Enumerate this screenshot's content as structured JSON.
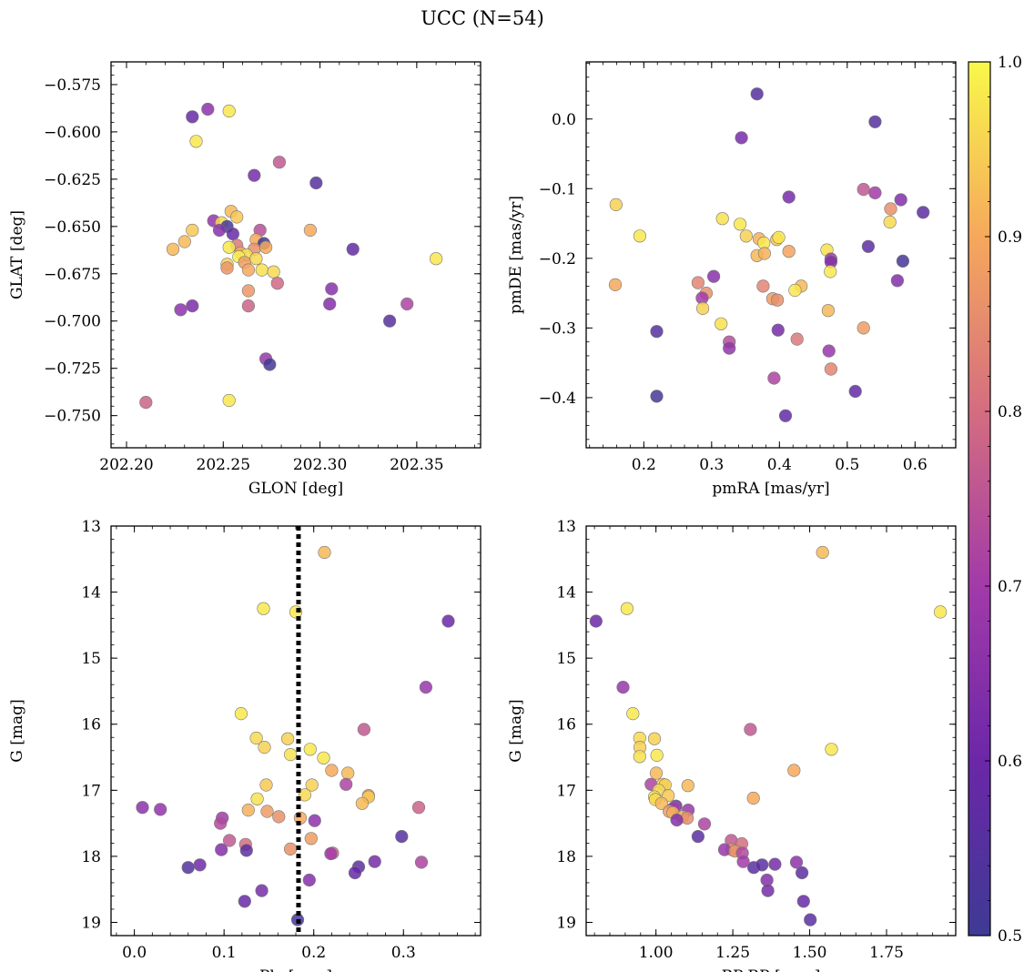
{
  "figure": {
    "title": "UCC (N=54)",
    "colorbar": {
      "min": 0.5,
      "max": 1.0,
      "ticks": [
        "0.5",
        "0.6",
        "0.7",
        "0.8",
        "0.9",
        "1.0"
      ],
      "colormap": "plasma"
    }
  },
  "chart_data": [
    {
      "type": "scatter",
      "title": "",
      "xlabel": "GLON [deg]",
      "ylabel": "GLAT [deg]",
      "xlim": [
        202.192,
        202.383
      ],
      "ylim": [
        -0.767,
        -0.563
      ],
      "yinvert": false,
      "xticks": [
        202.2,
        202.25,
        202.3,
        202.35
      ],
      "xticklabels": [
        "202.20",
        "202.25",
        "202.30",
        "202.35"
      ],
      "yticks": [
        -0.575,
        -0.6,
        -0.625,
        -0.65,
        -0.675,
        -0.7,
        -0.725,
        -0.75
      ],
      "yticklabels": [
        "−0.575",
        "−0.600",
        "−0.625",
        "−0.650",
        "−0.675",
        "−0.700",
        "−0.725",
        "−0.750"
      ],
      "points": [
        [
          202.242,
          -0.588,
          0.66
        ],
        [
          202.253,
          -0.589,
          0.98
        ],
        [
          202.234,
          -0.592,
          0.59
        ],
        [
          202.236,
          -0.605,
          0.98
        ],
        [
          202.279,
          -0.616,
          0.76
        ],
        [
          202.266,
          -0.623,
          0.62
        ],
        [
          202.298,
          -0.627,
          0.55
        ],
        [
          202.254,
          -0.642,
          0.92
        ],
        [
          202.257,
          -0.645,
          0.94
        ],
        [
          202.245,
          -0.647,
          0.67
        ],
        [
          202.249,
          -0.648,
          0.96
        ],
        [
          202.252,
          -0.65,
          0.51
        ],
        [
          202.248,
          -0.652,
          0.65
        ],
        [
          202.234,
          -0.652,
          0.94
        ],
        [
          202.269,
          -0.652,
          0.74
        ],
        [
          202.295,
          -0.652,
          0.9
        ],
        [
          202.255,
          -0.654,
          0.59
        ],
        [
          202.267,
          -0.657,
          0.9
        ],
        [
          202.23,
          -0.658,
          0.92
        ],
        [
          202.271,
          -0.659,
          0.5
        ],
        [
          202.257,
          -0.66,
          0.82
        ],
        [
          202.253,
          -0.661,
          0.98
        ],
        [
          202.224,
          -0.662,
          0.92
        ],
        [
          202.266,
          -0.662,
          0.86
        ],
        [
          202.272,
          -0.661,
          0.9
        ],
        [
          202.317,
          -0.662,
          0.58
        ],
        [
          202.259,
          -0.664,
          0.9
        ],
        [
          202.262,
          -0.665,
          0.97
        ],
        [
          202.258,
          -0.666,
          0.99
        ],
        [
          202.36,
          -0.667,
          0.98
        ],
        [
          202.261,
          -0.669,
          0.88
        ],
        [
          202.267,
          -0.667,
          0.96
        ],
        [
          202.252,
          -0.67,
          0.95
        ],
        [
          202.252,
          -0.672,
          0.87
        ],
        [
          202.263,
          -0.673,
          0.9
        ],
        [
          202.27,
          -0.673,
          0.97
        ],
        [
          202.276,
          -0.674,
          0.96
        ],
        [
          202.278,
          -0.68,
          0.79
        ],
        [
          202.306,
          -0.683,
          0.65
        ],
        [
          202.263,
          -0.684,
          0.87
        ],
        [
          202.263,
          -0.692,
          0.78
        ],
        [
          202.345,
          -0.691,
          0.72
        ],
        [
          202.305,
          -0.691,
          0.64
        ],
        [
          202.234,
          -0.692,
          0.63
        ],
        [
          202.228,
          -0.694,
          0.66
        ],
        [
          202.336,
          -0.7,
          0.55
        ],
        [
          202.272,
          -0.72,
          0.68
        ],
        [
          202.274,
          -0.723,
          0.51
        ],
        [
          202.21,
          -0.743,
          0.78
        ],
        [
          202.253,
          -0.742,
          0.98
        ]
      ]
    },
    {
      "type": "scatter",
      "title": "",
      "xlabel": "pmRA [mas/yr]",
      "ylabel": "pmDE [mas/yr]",
      "xlim": [
        0.115,
        0.66
      ],
      "ylim": [
        -0.472,
        0.082
      ],
      "yinvert": false,
      "xticks": [
        0.2,
        0.3,
        0.4,
        0.5,
        0.6
      ],
      "xticklabels": [
        "0.2",
        "0.3",
        "0.4",
        "0.5",
        "0.6"
      ],
      "yticks": [
        0.0,
        -0.1,
        -0.2,
        -0.3,
        -0.4
      ],
      "yticklabels": [
        "0.0",
        "−0.1",
        "−0.2",
        "−0.3",
        "−0.4"
      ],
      "points": [
        [
          0.367,
          0.036,
          0.55
        ],
        [
          0.541,
          -0.004,
          0.55
        ],
        [
          0.344,
          -0.027,
          0.62
        ],
        [
          0.524,
          -0.101,
          0.76
        ],
        [
          0.541,
          -0.106,
          0.7
        ],
        [
          0.579,
          -0.116,
          0.64
        ],
        [
          0.414,
          -0.112,
          0.62
        ],
        [
          0.564,
          -0.129,
          0.86
        ],
        [
          0.612,
          -0.134,
          0.57
        ],
        [
          0.159,
          -0.123,
          0.95
        ],
        [
          0.316,
          -0.143,
          0.97
        ],
        [
          0.342,
          -0.151,
          0.98
        ],
        [
          0.563,
          -0.148,
          0.96
        ],
        [
          0.194,
          -0.168,
          0.98
        ],
        [
          0.351,
          -0.168,
          0.95
        ],
        [
          0.396,
          -0.173,
          0.93
        ],
        [
          0.37,
          -0.172,
          0.91
        ],
        [
          0.377,
          -0.178,
          0.98
        ],
        [
          0.399,
          -0.17,
          0.98
        ],
        [
          0.531,
          -0.183,
          0.57
        ],
        [
          0.47,
          -0.188,
          0.97
        ],
        [
          0.367,
          -0.196,
          0.92
        ],
        [
          0.378,
          -0.193,
          0.91
        ],
        [
          0.414,
          -0.19,
          0.89
        ],
        [
          0.476,
          -0.201,
          0.7
        ],
        [
          0.476,
          -0.205,
          0.64
        ],
        [
          0.582,
          -0.204,
          0.52
        ],
        [
          0.475,
          -0.219,
          0.98
        ],
        [
          0.574,
          -0.232,
          0.64
        ],
        [
          0.158,
          -0.238,
          0.9
        ],
        [
          0.303,
          -0.226,
          0.65
        ],
        [
          0.28,
          -0.235,
          0.84
        ],
        [
          0.376,
          -0.24,
          0.84
        ],
        [
          0.432,
          -0.24,
          0.92
        ],
        [
          0.423,
          -0.246,
          0.98
        ],
        [
          0.292,
          -0.25,
          0.86
        ],
        [
          0.286,
          -0.257,
          0.7
        ],
        [
          0.39,
          -0.258,
          0.88
        ],
        [
          0.397,
          -0.26,
          0.86
        ],
        [
          0.287,
          -0.272,
          0.95
        ],
        [
          0.472,
          -0.275,
          0.92
        ],
        [
          0.314,
          -0.294,
          0.97
        ],
        [
          0.524,
          -0.3,
          0.88
        ],
        [
          0.219,
          -0.305,
          0.55
        ],
        [
          0.398,
          -0.303,
          0.62
        ],
        [
          0.326,
          -0.32,
          0.74
        ],
        [
          0.426,
          -0.316,
          0.82
        ],
        [
          0.326,
          -0.329,
          0.67
        ],
        [
          0.473,
          -0.333,
          0.68
        ],
        [
          0.476,
          -0.359,
          0.84
        ],
        [
          0.392,
          -0.372,
          0.72
        ],
        [
          0.512,
          -0.391,
          0.58
        ],
        [
          0.219,
          -0.398,
          0.52
        ],
        [
          0.409,
          -0.426,
          0.58
        ]
      ]
    },
    {
      "type": "scatter",
      "title": "",
      "xlabel": "Plx [mas]",
      "ylabel": "G [mag]",
      "xlim": [
        -0.026,
        0.386
      ],
      "ylim": [
        13.0,
        19.2
      ],
      "yinvert": true,
      "vline": 0.183,
      "xticks": [
        0.0,
        0.1,
        0.2,
        0.3
      ],
      "xticklabels": [
        "0.0",
        "0.1",
        "0.2",
        "0.3"
      ],
      "yticks": [
        13,
        14,
        15,
        16,
        17,
        18,
        19
      ],
      "yticklabels": [
        "13",
        "14",
        "15",
        "16",
        "17",
        "18",
        "19"
      ],
      "points": [
        [
          0.212,
          13.4,
          0.92
        ],
        [
          0.144,
          14.25,
          0.98
        ],
        [
          0.18,
          14.3,
          0.98
        ],
        [
          0.35,
          14.44,
          0.6
        ],
        [
          0.325,
          15.44,
          0.68
        ],
        [
          0.119,
          15.84,
          0.98
        ],
        [
          0.256,
          16.08,
          0.76
        ],
        [
          0.136,
          16.21,
          0.96
        ],
        [
          0.171,
          16.22,
          0.95
        ],
        [
          0.145,
          16.35,
          0.95
        ],
        [
          0.196,
          16.38,
          0.98
        ],
        [
          0.174,
          16.46,
          0.97
        ],
        [
          0.211,
          16.51,
          0.98
        ],
        [
          0.22,
          16.7,
          0.9
        ],
        [
          0.238,
          16.74,
          0.92
        ],
        [
          0.147,
          16.92,
          0.94
        ],
        [
          0.198,
          16.92,
          0.95
        ],
        [
          0.236,
          16.91,
          0.72
        ],
        [
          0.19,
          17.07,
          0.96
        ],
        [
          0.261,
          17.08,
          0.9
        ],
        [
          0.261,
          17.1,
          0.94
        ],
        [
          0.137,
          17.13,
          0.97
        ],
        [
          0.254,
          17.2,
          0.92
        ],
        [
          0.009,
          17.26,
          0.66
        ],
        [
          0.029,
          17.29,
          0.67
        ],
        [
          0.317,
          17.26,
          0.78
        ],
        [
          0.148,
          17.32,
          0.88
        ],
        [
          0.127,
          17.3,
          0.91
        ],
        [
          0.161,
          17.4,
          0.86
        ],
        [
          0.098,
          17.42,
          0.7
        ],
        [
          0.185,
          17.42,
          0.9
        ],
        [
          0.201,
          17.46,
          0.66
        ],
        [
          0.096,
          17.5,
          0.73
        ],
        [
          0.298,
          17.7,
          0.55
        ],
        [
          0.197,
          17.73,
          0.88
        ],
        [
          0.106,
          17.76,
          0.76
        ],
        [
          0.124,
          17.82,
          0.8
        ],
        [
          0.174,
          17.89,
          0.86
        ],
        [
          0.097,
          17.9,
          0.64
        ],
        [
          0.125,
          17.91,
          0.57
        ],
        [
          0.221,
          17.95,
          0.8
        ],
        [
          0.219,
          17.96,
          0.7
        ],
        [
          0.32,
          18.09,
          0.72
        ],
        [
          0.268,
          18.08,
          0.62
        ],
        [
          0.073,
          18.13,
          0.61
        ],
        [
          0.06,
          18.17,
          0.55
        ],
        [
          0.25,
          18.16,
          0.57
        ],
        [
          0.246,
          18.25,
          0.59
        ],
        [
          0.195,
          18.36,
          0.64
        ],
        [
          0.142,
          18.52,
          0.62
        ],
        [
          0.123,
          18.68,
          0.59
        ],
        [
          0.182,
          18.96,
          0.52
        ]
      ]
    },
    {
      "type": "scatter",
      "title": "",
      "xlabel": "BP-RP [mag]",
      "ylabel": "G [mag]",
      "xlim": [
        0.773,
        1.975
      ],
      "ylim": [
        13.0,
        19.2
      ],
      "yinvert": true,
      "xticks": [
        1.0,
        1.25,
        1.5,
        1.75
      ],
      "xticklabels": [
        "1.00",
        "1.25",
        "1.50",
        "1.75"
      ],
      "yticks": [
        13,
        14,
        15,
        16,
        17,
        18,
        19
      ],
      "yticklabels": [
        "13",
        "14",
        "15",
        "16",
        "17",
        "18",
        "19"
      ],
      "points": [
        [
          1.542,
          13.4,
          0.92
        ],
        [
          0.906,
          14.25,
          0.98
        ],
        [
          1.925,
          14.3,
          0.98
        ],
        [
          0.805,
          14.44,
          0.6
        ],
        [
          0.893,
          15.44,
          0.68
        ],
        [
          0.925,
          15.84,
          0.98
        ],
        [
          1.307,
          16.08,
          0.76
        ],
        [
          0.947,
          16.21,
          0.96
        ],
        [
          0.995,
          16.22,
          0.95
        ],
        [
          0.948,
          16.35,
          0.95
        ],
        [
          1.571,
          16.38,
          0.98
        ],
        [
          0.947,
          16.49,
          0.97
        ],
        [
          1.003,
          16.47,
          0.98
        ],
        [
          1.449,
          16.7,
          0.9
        ],
        [
          1.001,
          16.74,
          0.92
        ],
        [
          1.104,
          16.93,
          0.92
        ],
        [
          0.984,
          16.91,
          0.72
        ],
        [
          1.022,
          16.91,
          0.94
        ],
        [
          1.03,
          16.92,
          0.95
        ],
        [
          1.009,
          17.0,
          0.96
        ],
        [
          1.04,
          17.08,
          0.94
        ],
        [
          0.995,
          17.1,
          0.97
        ],
        [
          1.317,
          17.12,
          0.9
        ],
        [
          0.998,
          17.14,
          0.96
        ],
        [
          1.018,
          17.2,
          0.92
        ],
        [
          1.065,
          17.24,
          0.62
        ],
        [
          1.057,
          17.27,
          0.7
        ],
        [
          1.105,
          17.3,
          0.68
        ],
        [
          1.043,
          17.32,
          0.88
        ],
        [
          1.055,
          17.34,
          0.91
        ],
        [
          1.086,
          17.4,
          0.9
        ],
        [
          1.102,
          17.42,
          0.86
        ],
        [
          1.068,
          17.45,
          0.64
        ],
        [
          1.158,
          17.51,
          0.72
        ],
        [
          1.137,
          17.7,
          0.56
        ],
        [
          1.245,
          17.76,
          0.76
        ],
        [
          1.279,
          17.81,
          0.8
        ],
        [
          1.247,
          17.9,
          0.88
        ],
        [
          1.223,
          17.9,
          0.68
        ],
        [
          1.257,
          17.92,
          0.86
        ],
        [
          1.281,
          17.95,
          0.73
        ],
        [
          1.284,
          18.08,
          0.7
        ],
        [
          1.318,
          18.17,
          0.56
        ],
        [
          1.345,
          18.13,
          0.56
        ],
        [
          1.387,
          18.12,
          0.62
        ],
        [
          1.457,
          18.09,
          0.66
        ],
        [
          1.475,
          18.25,
          0.57
        ],
        [
          1.361,
          18.36,
          0.64
        ],
        [
          1.364,
          18.52,
          0.62
        ],
        [
          1.48,
          18.68,
          0.59
        ],
        [
          1.502,
          18.96,
          0.56
        ]
      ]
    }
  ]
}
